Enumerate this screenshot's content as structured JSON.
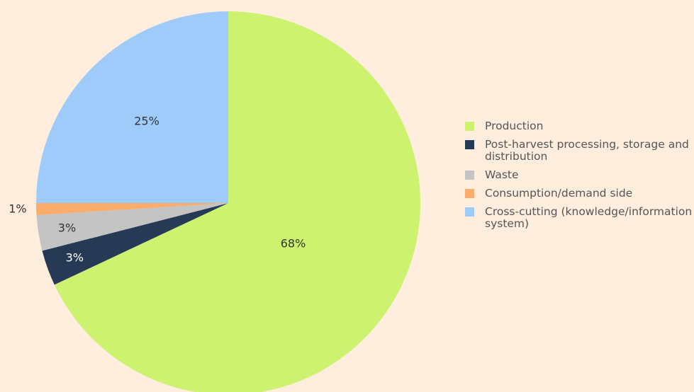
{
  "chart_data": {
    "type": "pie",
    "categories": [
      "Production",
      "Post-harvest processing, storage and distribution",
      "Waste",
      "Consumption/demand side",
      "Cross-cutting (knowledge/information system)"
    ],
    "values": [
      68,
      3,
      3,
      1,
      25
    ],
    "value_labels": [
      "68%",
      "3%",
      "3%",
      "1%",
      "25%"
    ],
    "colors": [
      "#cdf26f",
      "#263a56",
      "#c4c4c4",
      "#f9ac6c",
      "#9fcbfb"
    ],
    "legend": "right"
  }
}
